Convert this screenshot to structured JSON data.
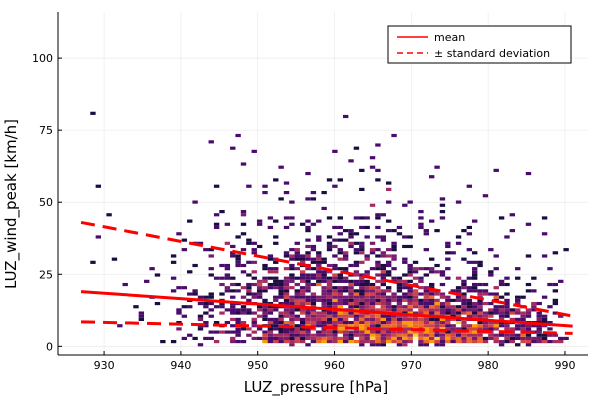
{
  "chart_data": {
    "type": "heatmap",
    "title": "",
    "xlabel": "LUZ_pressure [hPa]",
    "ylabel": "LUZ_wind_peak [km/h]",
    "xlim": [
      924,
      993
    ],
    "ylim": [
      -3,
      116
    ],
    "xticks": [
      930,
      940,
      950,
      960,
      970,
      980,
      990
    ],
    "yticks": [
      0,
      25,
      50,
      75,
      100
    ],
    "grid": true,
    "legend_position": "top-right",
    "colormap": [
      "#000004",
      "#1b0c41",
      "#4a0c6b",
      "#781c6d",
      "#a52c60",
      "#cf4446",
      "#ed6925",
      "#fb9b06",
      "#f7d13d",
      "#fcffa4"
    ],
    "density_peak": {
      "x": 966,
      "y": 8
    },
    "series": [
      {
        "name": "mean",
        "style": "solid",
        "color": "#ff0000",
        "x": [
          927,
          991
        ],
        "y": [
          19.0,
          7.0
        ]
      },
      {
        "name": "± standard deviation",
        "style": "dashed",
        "color": "#ff0000",
        "x": [
          927,
          991
        ],
        "y": [
          43.0,
          10.5
        ]
      },
      {
        "name": "± standard deviation",
        "style": "dashed",
        "color": "#ff0000",
        "x": [
          927,
          991
        ],
        "y": [
          8.5,
          4.5
        ]
      }
    ],
    "legend": [
      {
        "label": "mean",
        "style": "solid"
      },
      {
        "label": "± standard deviation",
        "style": "dashed"
      }
    ]
  }
}
